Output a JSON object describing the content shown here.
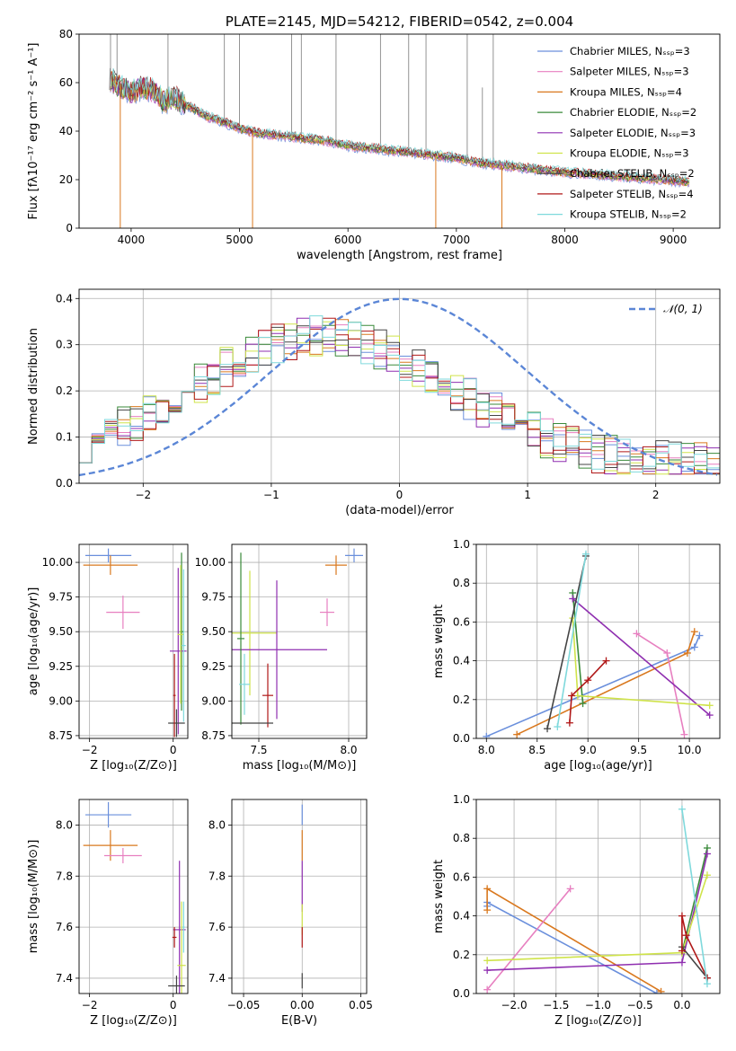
{
  "colors": {
    "Chabrier MILES": "#6a8fdc",
    "Salpeter MILES": "#e77fc0",
    "Kroupa MILES": "#d9781e",
    "Chabrier ELODIE": "#3a8a3a",
    "Salpeter ELODIE": "#8f2fb0",
    "Kroupa ELODIE": "#cfe34a",
    "Chabrier STELIB": "#444444",
    "Salpeter STELIB": "#b01818",
    "Kroupa STELIB": "#7fd9dc"
  },
  "chart_data": [
    {
      "id": "spectrum",
      "type": "line",
      "title": "PLATE=2145, MJD=54212, FIBERID=0542, z=0.004",
      "xlabel": "wavelength [Angstrom, rest frame]",
      "ylabel": "Flux [fλ10⁻¹⁷ erg cm⁻² s⁻¹ A⁻¹]",
      "xlim": [
        3520,
        9430
      ],
      "ylim": [
        0,
        80
      ],
      "xticks": [
        4000,
        5000,
        6000,
        7000,
        8000,
        9000
      ],
      "yticks": [
        0,
        20,
        40,
        60,
        80
      ],
      "legend_position": "top-right",
      "legend": [
        "Chabrier MILES, N_SSP=3",
        "Salpeter MILES, N_SSP=3",
        "Kroupa MILES, N_SSP=4",
        "Chabrier ELODIE, N_SSP=2",
        "Salpeter ELODIE, N_SSP=3",
        "Kroupa ELODIE, N_SSP=3",
        "Chabrier STELIB, N_SSP=2",
        "Salpeter STELIB, N_SSP=4",
        "Kroupa STELIB, N_SSP=2"
      ],
      "continuum": [
        [
          3800,
          62
        ],
        [
          3900,
          58
        ],
        [
          4000,
          56
        ],
        [
          4100,
          58
        ],
        [
          4200,
          57
        ],
        [
          4300,
          52
        ],
        [
          4400,
          54
        ],
        [
          4500,
          51
        ],
        [
          4700,
          46
        ],
        [
          4900,
          43
        ],
        [
          5000,
          41
        ],
        [
          5200,
          39
        ],
        [
          5400,
          38
        ],
        [
          5600,
          37
        ],
        [
          5800,
          36
        ],
        [
          6000,
          34
        ],
        [
          6200,
          33
        ],
        [
          6400,
          32
        ],
        [
          6600,
          31
        ],
        [
          6800,
          30
        ],
        [
          7000,
          29
        ],
        [
          7200,
          27
        ],
        [
          7400,
          26
        ],
        [
          7600,
          25
        ],
        [
          7800,
          24
        ],
        [
          8000,
          23
        ],
        [
          8300,
          22
        ],
        [
          8600,
          21
        ],
        [
          8900,
          20
        ],
        [
          9150,
          19
        ]
      ],
      "data_spikes": [
        [
          3810,
          80
        ],
        [
          3870,
          80
        ],
        [
          4340,
          80
        ],
        [
          4860,
          80
        ],
        [
          5000,
          80
        ],
        [
          5480,
          80
        ],
        [
          5570,
          80
        ],
        [
          5890,
          80
        ],
        [
          6300,
          80
        ],
        [
          6560,
          80
        ],
        [
          6720,
          80
        ],
        [
          7100,
          80
        ],
        [
          7340,
          80
        ],
        [
          7240,
          58
        ]
      ],
      "model_drops": [
        [
          5120,
          0
        ],
        [
          6810,
          0
        ],
        [
          7420,
          0
        ],
        [
          3900,
          0
        ]
      ]
    },
    {
      "id": "residual-hist",
      "type": "line",
      "xlabel": "(data-model)/error",
      "ylabel": "Normed distribution",
      "xlim": [
        -2.5,
        2.5
      ],
      "ylim": [
        0,
        0.42
      ],
      "xticks": [
        -2,
        -1,
        0,
        1,
        2
      ],
      "yticks": [
        0.0,
        0.1,
        0.2,
        0.3,
        0.4
      ],
      "legend": [
        "𝒩(0, 1)"
      ],
      "legend_position": "top-right",
      "normal_pdf": {
        "mu": 0,
        "sigma": 1
      }
    },
    {
      "id": "age-vs-Z",
      "type": "scatter",
      "xlabel": "Z [log₁₀(Z/Z⊙)]",
      "ylabel": "age  [log₁₀(age/yr)]",
      "xlim": [
        -2.25,
        0.35
      ],
      "ylim": [
        8.73,
        10.13
      ],
      "xticks": [
        -2,
        0
      ],
      "yticks": [
        8.75,
        9.0,
        9.25,
        9.5,
        9.75,
        10.0
      ],
      "points": [
        {
          "series": "Chabrier MILES",
          "x": -1.55,
          "y": 10.05,
          "xerr": 0.55,
          "yerr": 0.05
        },
        {
          "series": "Kroupa MILES",
          "x": -1.5,
          "y": 9.98,
          "xerr": 0.65,
          "yerr": 0.07
        },
        {
          "series": "Salpeter MILES",
          "x": -1.2,
          "y": 9.64,
          "xerr": 0.4,
          "yerr": 0.12
        },
        {
          "series": "Chabrier ELODIE",
          "x": 0.2,
          "y": 9.5,
          "xerr": 0.05,
          "yerr": 0.57
        },
        {
          "series": "Salpeter ELODIE",
          "x": 0.12,
          "y": 9.36,
          "xerr": 0.2,
          "yerr": 0.6
        },
        {
          "series": "Kroupa ELODIE",
          "x": 0.18,
          "y": 9.48,
          "xerr": 0.08,
          "yerr": 0.5
        },
        {
          "series": "Chabrier STELIB",
          "x": 0.08,
          "y": 8.84,
          "xerr": 0.2,
          "yerr": 0.1
        },
        {
          "series": "Salpeter STELIB",
          "x": 0.03,
          "y": 9.04,
          "xerr": 0.03,
          "yerr": 0.3
        },
        {
          "series": "Kroupa STELIB",
          "x": 0.25,
          "y": 9.4,
          "xerr": 0.05,
          "yerr": 0.55
        }
      ]
    },
    {
      "id": "age-vs-mass",
      "type": "scatter",
      "xlabel": "mass [log₁₀(M/M⊙)]",
      "ylabel": "",
      "xlim": [
        7.35,
        8.1
      ],
      "ylim": [
        8.73,
        10.13
      ],
      "xticks": [
        7.5,
        8.0
      ],
      "yticks": [
        8.75,
        9.0,
        9.25,
        9.5,
        9.75,
        10.0
      ],
      "points": [
        {
          "series": "Chabrier MILES",
          "x": 8.03,
          "y": 10.05,
          "xerr": 0.05,
          "yerr": 0.05
        },
        {
          "series": "Kroupa MILES",
          "x": 7.93,
          "y": 9.98,
          "xerr": 0.06,
          "yerr": 0.07
        },
        {
          "series": "Salpeter MILES",
          "x": 7.88,
          "y": 9.64,
          "xerr": 0.04,
          "yerr": 0.1
        },
        {
          "series": "Kroupa ELODIE",
          "x": 7.45,
          "y": 9.49,
          "xerr": 0.15,
          "yerr": 0.45
        },
        {
          "series": "Salpeter ELODIE",
          "x": 7.6,
          "y": 9.37,
          "xerr": 0.28,
          "yerr": 0.5
        },
        {
          "series": "Chabrier ELODIE",
          "x": 7.4,
          "y": 9.45,
          "xerr": 0.02,
          "yerr": 0.62
        },
        {
          "series": "Kroupa STELIB",
          "x": 7.42,
          "y": 9.12,
          "xerr": 0.03,
          "yerr": 0.22
        },
        {
          "series": "Salpeter STELIB",
          "x": 7.55,
          "y": 9.04,
          "xerr": 0.03,
          "yerr": 0.23
        },
        {
          "series": "Chabrier STELIB",
          "x": 7.46,
          "y": 8.84,
          "xerr": 0.12,
          "yerr": 0.0
        }
      ]
    },
    {
      "id": "mass-weight-vs-age",
      "type": "line",
      "xlabel": "age  [log₁₀(age/yr)]",
      "ylabel": "mass weight",
      "xlim": [
        7.9,
        10.3
      ],
      "ylim": [
        0,
        1.0
      ],
      "xticks": [
        8.0,
        8.5,
        9.0,
        9.5,
        10.0
      ],
      "yticks": [
        0.0,
        0.2,
        0.4,
        0.6,
        0.8,
        1.0
      ],
      "series": [
        {
          "name": "Chabrier MILES",
          "points": [
            [
              8.0,
              0.01
            ],
            [
              10.05,
              0.47
            ],
            [
              10.1,
              0.53
            ]
          ]
        },
        {
          "name": "Kroupa MILES",
          "points": [
            [
              8.3,
              0.02
            ],
            [
              9.98,
              0.44
            ],
            [
              10.05,
              0.55
            ]
          ]
        },
        {
          "name": "Salpeter MILES",
          "points": [
            [
              9.48,
              0.54
            ],
            [
              9.78,
              0.44
            ],
            [
              9.95,
              0.02
            ]
          ]
        },
        {
          "name": "Chabrier ELODIE",
          "points": [
            [
              8.85,
              0.75
            ],
            [
              8.95,
              0.18
            ]
          ]
        },
        {
          "name": "Salpeter ELODIE",
          "points": [
            [
              8.85,
              0.72
            ],
            [
              10.2,
              0.12
            ]
          ]
        },
        {
          "name": "Kroupa ELODIE",
          "points": [
            [
              8.85,
              0.62
            ],
            [
              8.9,
              0.22
            ],
            [
              10.2,
              0.17
            ]
          ]
        },
        {
          "name": "Chabrier STELIB",
          "points": [
            [
              8.6,
              0.05
            ],
            [
              8.98,
              0.94
            ]
          ]
        },
        {
          "name": "Salpeter STELIB",
          "points": [
            [
              8.82,
              0.08
            ],
            [
              8.84,
              0.22
            ],
            [
              9.0,
              0.3
            ],
            [
              9.18,
              0.4
            ]
          ]
        },
        {
          "name": "Kroupa STELIB",
          "points": [
            [
              8.7,
              0.06
            ],
            [
              8.98,
              0.95
            ]
          ]
        }
      ]
    },
    {
      "id": "mass-vs-Z",
      "type": "scatter",
      "xlabel": "Z [log₁₀(Z/Z⊙)]",
      "ylabel": "mass [log₁₀(M/M⊙)]",
      "xlim": [
        -2.25,
        0.35
      ],
      "ylim": [
        7.34,
        8.1
      ],
      "xticks": [
        -2,
        0
      ],
      "yticks": [
        7.4,
        7.6,
        7.8,
        8.0
      ],
      "points": [
        {
          "series": "Chabrier MILES",
          "x": -1.55,
          "y": 8.04,
          "xerr": 0.55,
          "yerr": 0.05
        },
        {
          "series": "Kroupa MILES",
          "x": -1.5,
          "y": 7.92,
          "xerr": 0.65,
          "yerr": 0.06
        },
        {
          "series": "Salpeter MILES",
          "x": -1.2,
          "y": 7.88,
          "xerr": 0.45,
          "yerr": 0.03
        },
        {
          "series": "Salpeter ELODIE",
          "x": 0.15,
          "y": 7.59,
          "xerr": 0.15,
          "yerr": 0.27
        },
        {
          "series": "Kroupa ELODIE",
          "x": 0.2,
          "y": 7.45,
          "xerr": 0.1,
          "yerr": 0.25
        },
        {
          "series": "Salpeter STELIB",
          "x": 0.03,
          "y": 7.56,
          "xerr": 0.05,
          "yerr": 0.04
        },
        {
          "series": "Chabrier STELIB",
          "x": 0.08,
          "y": 7.37,
          "xerr": 0.2,
          "yerr": 0.04
        },
        {
          "series": "Kroupa STELIB",
          "x": 0.25,
          "y": 7.6,
          "xerr": 0.03,
          "yerr": 0.1
        }
      ]
    },
    {
      "id": "mass-vs-ebv",
      "type": "scatter",
      "xlabel": "E(B-V)",
      "ylabel": "",
      "xlim": [
        -0.06,
        0.055
      ],
      "ylim": [
        7.34,
        8.1
      ],
      "xticks": [
        -0.05,
        0.0,
        0.05
      ],
      "yticks": [
        7.4,
        7.6,
        7.8,
        8.0
      ],
      "points": [
        {
          "series": "Chabrier MILES",
          "x": 0.0,
          "y": 8.04,
          "xerr": 0.0,
          "yerr": 0.04
        },
        {
          "series": "Kroupa MILES",
          "x": 0.0,
          "y": 7.92,
          "xerr": 0.0,
          "yerr": 0.06
        },
        {
          "series": "Salpeter ELODIE",
          "x": 0.0,
          "y": 7.76,
          "xerr": 0.0,
          "yerr": 0.1
        },
        {
          "series": "Kroupa ELODIE",
          "x": 0.0,
          "y": 7.63,
          "xerr": 0.0,
          "yerr": 0.06
        },
        {
          "series": "Salpeter STELIB",
          "x": 0.0,
          "y": 7.56,
          "xerr": 0.0,
          "yerr": 0.04
        },
        {
          "series": "Chabrier STELIB",
          "x": 0.0,
          "y": 7.39,
          "xerr": 0.0,
          "yerr": 0.03
        }
      ]
    },
    {
      "id": "mass-weight-vs-Z",
      "type": "line",
      "xlabel": "Z [log₁₀(Z/Z⊙)]",
      "ylabel": "mass weight",
      "xlim": [
        -2.45,
        0.45
      ],
      "ylim": [
        0,
        1.0
      ],
      "xticks": [
        -2.0,
        -1.5,
        -1.0,
        -0.5,
        0.0
      ],
      "yticks": [
        0.0,
        0.2,
        0.4,
        0.6,
        0.8,
        1.0
      ],
      "series": [
        {
          "name": "Chabrier MILES",
          "points": [
            [
              -2.32,
              0.45
            ],
            [
              -2.32,
              0.47
            ],
            [
              -0.3,
              0.0
            ]
          ]
        },
        {
          "name": "Kroupa MILES",
          "points": [
            [
              -2.32,
              0.43
            ],
            [
              -2.32,
              0.54
            ],
            [
              -0.25,
              0.01
            ]
          ]
        },
        {
          "name": "Salpeter MILES",
          "points": [
            [
              -2.32,
              0.02
            ],
            [
              -1.33,
              0.54
            ]
          ]
        },
        {
          "name": "Chabrier ELODIE",
          "points": [
            [
              0.0,
              0.21
            ],
            [
              0.3,
              0.75
            ]
          ]
        },
        {
          "name": "Salpeter ELODIE",
          "points": [
            [
              -2.32,
              0.12
            ],
            [
              0.0,
              0.16
            ],
            [
              0.3,
              0.72
            ]
          ]
        },
        {
          "name": "Kroupa ELODIE",
          "points": [
            [
              -2.32,
              0.17
            ],
            [
              0.0,
              0.21
            ],
            [
              0.3,
              0.61
            ]
          ]
        },
        {
          "name": "Chabrier STELIB",
          "points": [
            [
              0.0,
              0.24
            ],
            [
              0.3,
              0.08
            ]
          ]
        },
        {
          "name": "Salpeter STELIB",
          "points": [
            [
              0.0,
              0.22
            ],
            [
              0.0,
              0.4
            ],
            [
              0.05,
              0.3
            ],
            [
              0.3,
              0.08
            ]
          ]
        },
        {
          "name": "Kroupa STELIB",
          "points": [
            [
              0.0,
              0.95
            ],
            [
              0.3,
              0.05
            ]
          ]
        }
      ]
    }
  ]
}
